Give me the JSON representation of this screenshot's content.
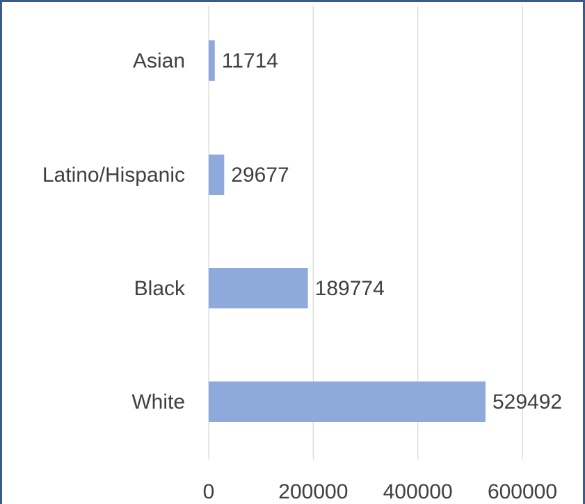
{
  "chart_data": {
    "type": "bar",
    "orientation": "horizontal",
    "categories": [
      "Asian",
      "Latino/Hispanic",
      "Black",
      "White"
    ],
    "values": [
      11714,
      29677,
      189774,
      529492
    ],
    "data_labels": [
      "11714",
      "29677",
      "189774",
      "529492"
    ],
    "xlim": [
      0,
      600000
    ],
    "x_ticks": [
      "0",
      "200000",
      "400000",
      "600000"
    ],
    "grid": "vertical",
    "colors": {
      "bar": "#8eaadb",
      "grid": "#d9d9d9",
      "text": "#404040",
      "frame": "#3b5a8a"
    }
  }
}
